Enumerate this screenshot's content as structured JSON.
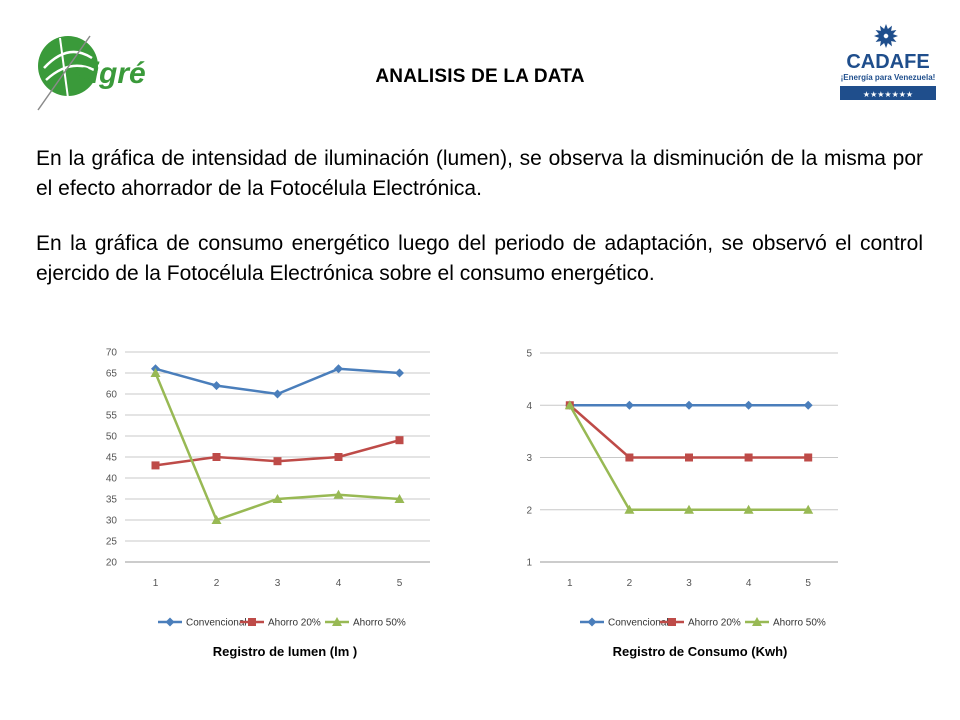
{
  "header": {
    "title": "ANALISIS DE LA DATA",
    "logo_left_text": "cigré",
    "logo_right_text": "CADAFE",
    "logo_right_tagline": "¡Energía para Venezuela!",
    "logo_right_stars": "★★★★★★★"
  },
  "paragraphs": [
    "En la gráfica de intensidad de iluminación (lumen), se observa la disminución de la misma por el efecto ahorrador de la Fotocélula Electrónica.",
    "En la gráfica de consumo energético luego del periodo de adaptación, se observó el control ejercido de la Fotocélula Electrónica sobre el consumo energético."
  ],
  "captions": {
    "lumen": "Registro de lumen (lm )",
    "consumo": "Registro de Consumo (Kwh)"
  },
  "colors": {
    "convencional": "#4a7ebb",
    "ahorro20": "#be4b48",
    "ahorro50": "#98b954",
    "grid": "#c8c8c8"
  },
  "chart_data": [
    {
      "type": "line",
      "categories": [
        "1",
        "2",
        "3",
        "4",
        "5"
      ],
      "ylim": [
        20,
        70
      ],
      "yticks": [
        20,
        25,
        30,
        35,
        40,
        45,
        50,
        55,
        60,
        65,
        70
      ],
      "grid": true,
      "legend": "bottom",
      "series": [
        {
          "name": "Convencional",
          "values": [
            66,
            62,
            60,
            66,
            65
          ],
          "marker": "diamond"
        },
        {
          "name": "Ahorro 20%",
          "values": [
            43,
            45,
            44,
            45,
            49
          ],
          "marker": "square"
        },
        {
          "name": "Ahorro 50%",
          "values": [
            65,
            30,
            35,
            36,
            35
          ],
          "marker": "triangle"
        }
      ]
    },
    {
      "type": "line",
      "categories": [
        "1",
        "2",
        "3",
        "4",
        "5"
      ],
      "ylim": [
        1,
        5
      ],
      "yticks": [
        1,
        2,
        3,
        4,
        5
      ],
      "grid": true,
      "legend": "bottom",
      "series": [
        {
          "name": "Convencional",
          "values": [
            4,
            4,
            4,
            4,
            4
          ],
          "marker": "diamond"
        },
        {
          "name": "Ahorro 20%",
          "values": [
            4,
            3,
            3,
            3,
            3
          ],
          "marker": "square"
        },
        {
          "name": "Ahorro 50%",
          "values": [
            4,
            2,
            2,
            2,
            2
          ],
          "marker": "triangle"
        }
      ]
    }
  ]
}
